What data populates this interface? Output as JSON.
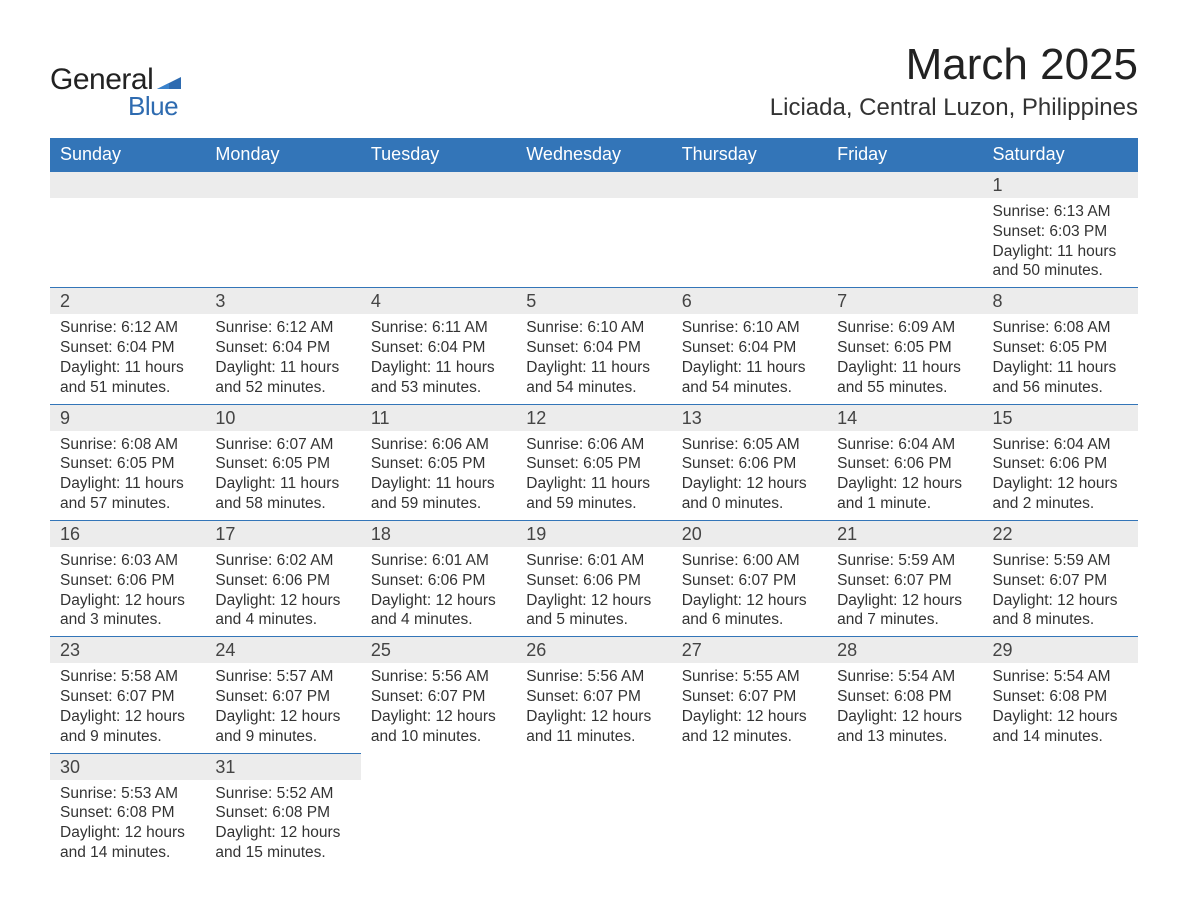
{
  "brand": {
    "word1": "General",
    "word2": "Blue",
    "logo_color": "#2e6bb0"
  },
  "title": "March 2025",
  "location": "Liciada, Central Luzon, Philippines",
  "colors": {
    "header_bg": "#3375b8",
    "header_text": "#ffffff",
    "daynum_bg": "#ececec",
    "text": "#333333",
    "row_border": "#3375b8",
    "page_bg": "#ffffff"
  },
  "typography": {
    "month_title_fontsize": 44,
    "location_fontsize": 24,
    "weekday_fontsize": 18,
    "daynum_fontsize": 18,
    "body_fontsize": 15.5
  },
  "weekdays": [
    "Sunday",
    "Monday",
    "Tuesday",
    "Wednesday",
    "Thursday",
    "Friday",
    "Saturday"
  ],
  "weeks": [
    [
      null,
      null,
      null,
      null,
      null,
      null,
      {
        "day": 1,
        "sunrise": "6:13 AM",
        "sunset": "6:03 PM",
        "daylight": "11 hours and 50 minutes."
      }
    ],
    [
      {
        "day": 2,
        "sunrise": "6:12 AM",
        "sunset": "6:04 PM",
        "daylight": "11 hours and 51 minutes."
      },
      {
        "day": 3,
        "sunrise": "6:12 AM",
        "sunset": "6:04 PM",
        "daylight": "11 hours and 52 minutes."
      },
      {
        "day": 4,
        "sunrise": "6:11 AM",
        "sunset": "6:04 PM",
        "daylight": "11 hours and 53 minutes."
      },
      {
        "day": 5,
        "sunrise": "6:10 AM",
        "sunset": "6:04 PM",
        "daylight": "11 hours and 54 minutes."
      },
      {
        "day": 6,
        "sunrise": "6:10 AM",
        "sunset": "6:04 PM",
        "daylight": "11 hours and 54 minutes."
      },
      {
        "day": 7,
        "sunrise": "6:09 AM",
        "sunset": "6:05 PM",
        "daylight": "11 hours and 55 minutes."
      },
      {
        "day": 8,
        "sunrise": "6:08 AM",
        "sunset": "6:05 PM",
        "daylight": "11 hours and 56 minutes."
      }
    ],
    [
      {
        "day": 9,
        "sunrise": "6:08 AM",
        "sunset": "6:05 PM",
        "daylight": "11 hours and 57 minutes."
      },
      {
        "day": 10,
        "sunrise": "6:07 AM",
        "sunset": "6:05 PM",
        "daylight": "11 hours and 58 minutes."
      },
      {
        "day": 11,
        "sunrise": "6:06 AM",
        "sunset": "6:05 PM",
        "daylight": "11 hours and 59 minutes."
      },
      {
        "day": 12,
        "sunrise": "6:06 AM",
        "sunset": "6:05 PM",
        "daylight": "11 hours and 59 minutes."
      },
      {
        "day": 13,
        "sunrise": "6:05 AM",
        "sunset": "6:06 PM",
        "daylight": "12 hours and 0 minutes."
      },
      {
        "day": 14,
        "sunrise": "6:04 AM",
        "sunset": "6:06 PM",
        "daylight": "12 hours and 1 minute."
      },
      {
        "day": 15,
        "sunrise": "6:04 AM",
        "sunset": "6:06 PM",
        "daylight": "12 hours and 2 minutes."
      }
    ],
    [
      {
        "day": 16,
        "sunrise": "6:03 AM",
        "sunset": "6:06 PM",
        "daylight": "12 hours and 3 minutes."
      },
      {
        "day": 17,
        "sunrise": "6:02 AM",
        "sunset": "6:06 PM",
        "daylight": "12 hours and 4 minutes."
      },
      {
        "day": 18,
        "sunrise": "6:01 AM",
        "sunset": "6:06 PM",
        "daylight": "12 hours and 4 minutes."
      },
      {
        "day": 19,
        "sunrise": "6:01 AM",
        "sunset": "6:06 PM",
        "daylight": "12 hours and 5 minutes."
      },
      {
        "day": 20,
        "sunrise": "6:00 AM",
        "sunset": "6:07 PM",
        "daylight": "12 hours and 6 minutes."
      },
      {
        "day": 21,
        "sunrise": "5:59 AM",
        "sunset": "6:07 PM",
        "daylight": "12 hours and 7 minutes."
      },
      {
        "day": 22,
        "sunrise": "5:59 AM",
        "sunset": "6:07 PM",
        "daylight": "12 hours and 8 minutes."
      }
    ],
    [
      {
        "day": 23,
        "sunrise": "5:58 AM",
        "sunset": "6:07 PM",
        "daylight": "12 hours and 9 minutes."
      },
      {
        "day": 24,
        "sunrise": "5:57 AM",
        "sunset": "6:07 PM",
        "daylight": "12 hours and 9 minutes."
      },
      {
        "day": 25,
        "sunrise": "5:56 AM",
        "sunset": "6:07 PM",
        "daylight": "12 hours and 10 minutes."
      },
      {
        "day": 26,
        "sunrise": "5:56 AM",
        "sunset": "6:07 PM",
        "daylight": "12 hours and 11 minutes."
      },
      {
        "day": 27,
        "sunrise": "5:55 AM",
        "sunset": "6:07 PM",
        "daylight": "12 hours and 12 minutes."
      },
      {
        "day": 28,
        "sunrise": "5:54 AM",
        "sunset": "6:08 PM",
        "daylight": "12 hours and 13 minutes."
      },
      {
        "day": 29,
        "sunrise": "5:54 AM",
        "sunset": "6:08 PM",
        "daylight": "12 hours and 14 minutes."
      }
    ],
    [
      {
        "day": 30,
        "sunrise": "5:53 AM",
        "sunset": "6:08 PM",
        "daylight": "12 hours and 14 minutes."
      },
      {
        "day": 31,
        "sunrise": "5:52 AM",
        "sunset": "6:08 PM",
        "daylight": "12 hours and 15 minutes."
      },
      null,
      null,
      null,
      null,
      null
    ]
  ],
  "labels": {
    "sunrise": "Sunrise:",
    "sunset": "Sunset:",
    "daylight": "Daylight:"
  }
}
